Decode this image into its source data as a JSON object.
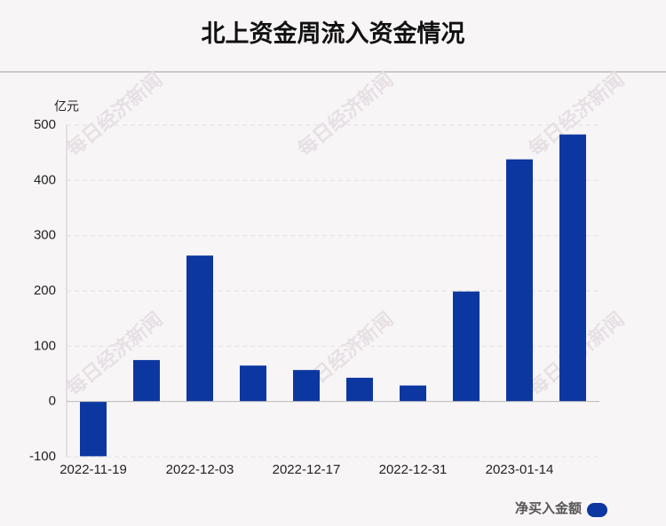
{
  "chart_data": {
    "type": "bar",
    "title": "北上资金周流入资金情况",
    "y_unit": "亿元",
    "watermark": "每日经济新闻",
    "categories": [
      "2022-11-19",
      null,
      "2022-12-03",
      null,
      "2022-12-17",
      null,
      "2022-12-31",
      null,
      "2023-01-14",
      null
    ],
    "series": [
      {
        "name": "净买入金额",
        "color": "#0d37a0",
        "values": [
          -99,
          75,
          264,
          65,
          57,
          43,
          29,
          199,
          438,
          483
        ]
      }
    ],
    "ylim": [
      -100,
      500
    ],
    "yticks": [
      -100,
      0,
      100,
      200,
      300,
      400,
      500
    ],
    "grid": true,
    "legend": "bottom-right"
  }
}
